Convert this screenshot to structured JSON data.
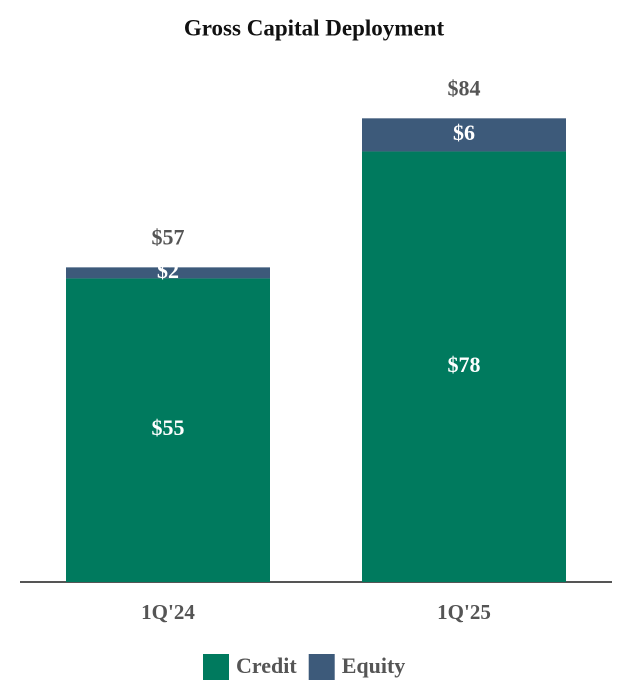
{
  "chart_data": {
    "type": "stacked_bar",
    "title": "Gross Capital Deployment",
    "categories": [
      "1Q'24",
      "1Q'25"
    ],
    "series": [
      {
        "name": "Credit",
        "color": "#007a5e",
        "values": [
          55,
          78
        ],
        "value_labels": [
          "$55",
          "$78"
        ]
      },
      {
        "name": "Equity",
        "color": "#3d5a7a",
        "values": [
          2,
          6
        ],
        "value_labels": [
          "$2",
          "$6"
        ]
      }
    ],
    "totals": [
      57,
      84
    ],
    "total_labels": [
      "$57",
      "$84"
    ],
    "ylim": [
      0,
      100
    ],
    "legend": "bottom"
  }
}
